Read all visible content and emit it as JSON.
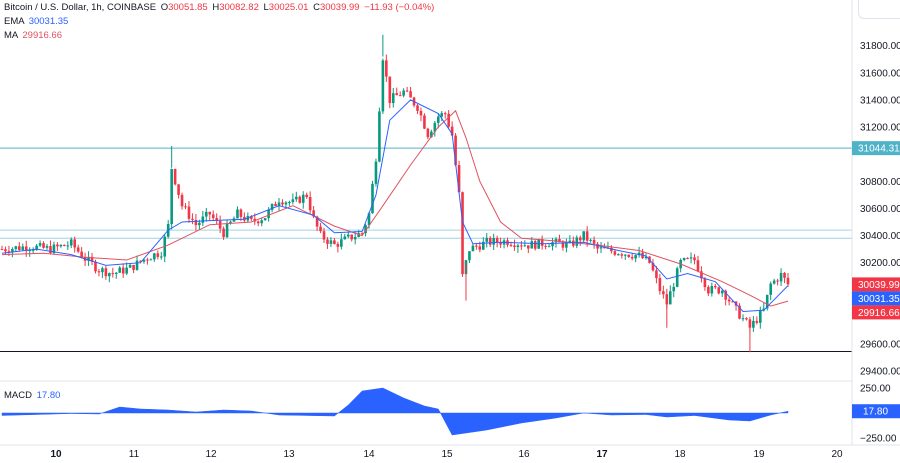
{
  "header": {
    "symbol": "Bitcoin / U.S. Dollar, 1h, COINBASE",
    "o_label": "O",
    "o_value": "30051.85",
    "h_label": "H",
    "h_value": "30082.82",
    "l_label": "L",
    "l_value": "30025.01",
    "c_label": "C",
    "c_value": "30039.99",
    "change": "−11.93 (−0.04%)",
    "ema_label": "EMA",
    "ema_value": "30031.35",
    "ma_label": "MA",
    "ma_value": "29916.66"
  },
  "colors": {
    "up": "#089981",
    "down": "#f23645",
    "ema": "#2962ff",
    "ma": "#e05260",
    "level": "#4fb3c8",
    "macd": "#2962ff",
    "axis_text": "#131722"
  },
  "chart_data": {
    "type": "candlestick",
    "price_axis": {
      "ticks": [
        "31800.00",
        "31600.00",
        "31400.00",
        "31200.00",
        "30800.00",
        "30600.00",
        "30400.00",
        "30200.00",
        "29600.00",
        "29400.00"
      ],
      "range": [
        29350,
        31930
      ]
    },
    "price_labels": [
      {
        "value": 31044.31,
        "text": "31044.31",
        "color": "#4fb3c8"
      },
      {
        "value": 30039.99,
        "text": "30039.99",
        "color": "#f23645"
      },
      {
        "value": 30031.35,
        "text": "30031.35",
        "color": "#2962ff"
      },
      {
        "value": 29916.66,
        "text": "29916.66",
        "color": "#f23645"
      }
    ],
    "levels": [
      {
        "value": 31044.31,
        "style": "solid",
        "color": "#4fb3c8"
      },
      {
        "value": 30440,
        "style": "solid",
        "color": "#9fd4e0"
      },
      {
        "value": 30380,
        "style": "solid",
        "color": "#9fd4e0"
      },
      {
        "value": 29545,
        "style": "solid",
        "color": "#131722"
      }
    ],
    "x_axis": {
      "labels": [
        "10",
        "11",
        "12",
        "13",
        "14",
        "15",
        "16",
        "17",
        "18",
        "19",
        "20"
      ],
      "bold": [
        "10",
        "17"
      ]
    },
    "close_path": [
      [
        0,
        30300
      ],
      [
        8,
        30320
      ],
      [
        14,
        30300
      ],
      [
        20,
        30340
      ],
      [
        24,
        30230
      ],
      [
        28,
        30150
      ],
      [
        32,
        30120
      ],
      [
        37,
        30160
      ],
      [
        42,
        30240
      ],
      [
        46,
        30280
      ],
      [
        48,
        30470
      ],
      [
        49,
        30900
      ],
      [
        52,
        30620
      ],
      [
        56,
        30480
      ],
      [
        60,
        30560
      ],
      [
        64,
        30420
      ],
      [
        68,
        30560
      ],
      [
        72,
        30500
      ],
      [
        76,
        30540
      ],
      [
        80,
        30670
      ],
      [
        84,
        30640
      ],
      [
        88,
        30700
      ],
      [
        90,
        30520
      ],
      [
        92,
        30400
      ],
      [
        96,
        30330
      ],
      [
        100,
        30380
      ],
      [
        104,
        30420
      ],
      [
        106,
        30560
      ],
      [
        108,
        30980
      ],
      [
        110,
        31720
      ],
      [
        112,
        31400
      ],
      [
        116,
        31460
      ],
      [
        120,
        31350
      ],
      [
        123,
        31150
      ],
      [
        126,
        31280
      ],
      [
        128,
        31300
      ],
      [
        130,
        31140
      ],
      [
        132,
        30700
      ],
      [
        133,
        30100
      ],
      [
        135,
        30300
      ],
      [
        140,
        30350
      ],
      [
        146,
        30360
      ],
      [
        152,
        30330
      ],
      [
        158,
        30350
      ],
      [
        164,
        30330
      ],
      [
        168,
        30400
      ],
      [
        172,
        30300
      ],
      [
        178,
        30280
      ],
      [
        184,
        30250
      ],
      [
        187,
        30200
      ],
      [
        190,
        30000
      ],
      [
        192,
        29900
      ],
      [
        196,
        30200
      ],
      [
        200,
        30220
      ],
      [
        204,
        30000
      ],
      [
        208,
        30000
      ],
      [
        212,
        29850
      ],
      [
        216,
        29720
      ],
      [
        220,
        29850
      ],
      [
        222,
        30040
      ],
      [
        225,
        30110
      ],
      [
        227,
        30040
      ]
    ],
    "ema": [
      [
        0,
        30270
      ],
      [
        10,
        30300
      ],
      [
        20,
        30260
      ],
      [
        30,
        30180
      ],
      [
        40,
        30200
      ],
      [
        48,
        30440
      ],
      [
        52,
        30500
      ],
      [
        60,
        30510
      ],
      [
        70,
        30520
      ],
      [
        80,
        30620
      ],
      [
        90,
        30550
      ],
      [
        96,
        30420
      ],
      [
        104,
        30430
      ],
      [
        108,
        30700
      ],
      [
        112,
        31250
      ],
      [
        118,
        31400
      ],
      [
        126,
        31300
      ],
      [
        130,
        31150
      ],
      [
        133,
        30500
      ],
      [
        136,
        30340
      ],
      [
        144,
        30350
      ],
      [
        156,
        30340
      ],
      [
        168,
        30350
      ],
      [
        178,
        30290
      ],
      [
        186,
        30250
      ],
      [
        192,
        30080
      ],
      [
        198,
        30120
      ],
      [
        206,
        30060
      ],
      [
        214,
        29840
      ],
      [
        220,
        29850
      ],
      [
        227,
        30031
      ]
    ],
    "ma": [
      [
        0,
        30260
      ],
      [
        12,
        30270
      ],
      [
        24,
        30240
      ],
      [
        36,
        30220
      ],
      [
        48,
        30330
      ],
      [
        60,
        30480
      ],
      [
        72,
        30500
      ],
      [
        84,
        30620
      ],
      [
        96,
        30470
      ],
      [
        104,
        30400
      ],
      [
        110,
        30620
      ],
      [
        118,
        30920
      ],
      [
        126,
        31200
      ],
      [
        131,
        31320
      ],
      [
        134,
        31120
      ],
      [
        138,
        30800
      ],
      [
        144,
        30500
      ],
      [
        150,
        30380
      ],
      [
        160,
        30360
      ],
      [
        172,
        30330
      ],
      [
        184,
        30290
      ],
      [
        196,
        30190
      ],
      [
        208,
        30060
      ],
      [
        216,
        29960
      ],
      [
        222,
        29880
      ],
      [
        227,
        29917
      ]
    ],
    "macd": {
      "label": "MACD",
      "value": "17.80",
      "ticks": [
        "250.00",
        "−250.00"
      ],
      "range": [
        -290,
        290
      ],
      "points": [
        [
          0,
          -25
        ],
        [
          10,
          -15
        ],
        [
          20,
          -5
        ],
        [
          28,
          -10
        ],
        [
          34,
          60
        ],
        [
          40,
          40
        ],
        [
          48,
          30
        ],
        [
          56,
          10
        ],
        [
          64,
          30
        ],
        [
          72,
          20
        ],
        [
          80,
          -20
        ],
        [
          88,
          -25
        ],
        [
          96,
          -30
        ],
        [
          100,
          80
        ],
        [
          104,
          220
        ],
        [
          110,
          250
        ],
        [
          116,
          150
        ],
        [
          122,
          70
        ],
        [
          126,
          40
        ],
        [
          130,
          -220
        ],
        [
          134,
          -200
        ],
        [
          140,
          -170
        ],
        [
          150,
          -100
        ],
        [
          160,
          -50
        ],
        [
          168,
          0
        ],
        [
          176,
          -20
        ],
        [
          186,
          -15
        ],
        [
          192,
          -40
        ],
        [
          200,
          -25
        ],
        [
          210,
          -70
        ],
        [
          216,
          -80
        ],
        [
          222,
          -20
        ],
        [
          227,
          17.8
        ]
      ]
    }
  }
}
